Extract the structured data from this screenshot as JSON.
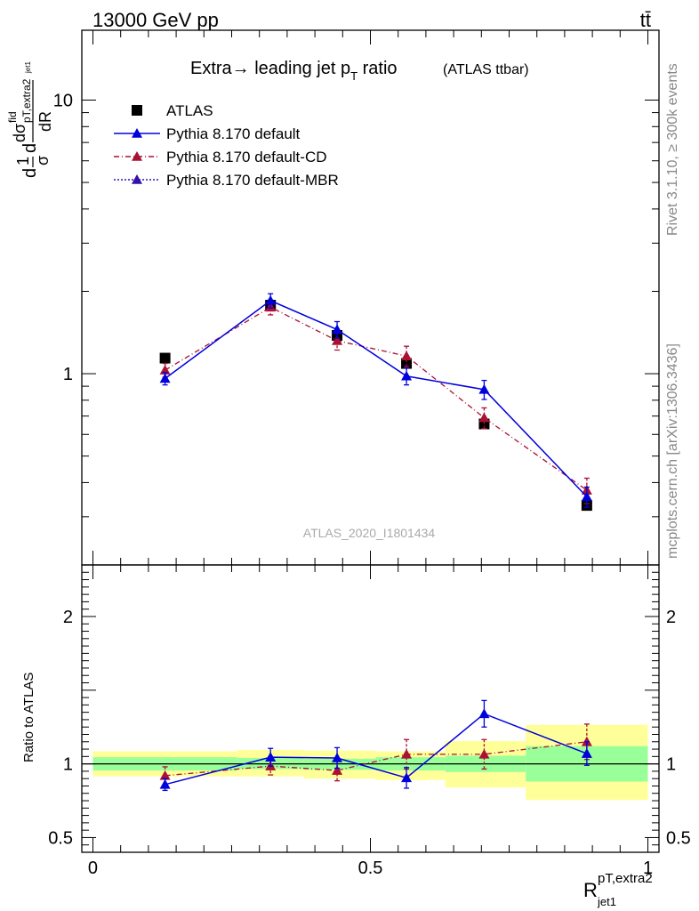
{
  "header": {
    "left": "13000 GeV pp",
    "right": "tt̄"
  },
  "title": {
    "main": "Extra→ leading jet p",
    "main_sub": "T",
    "main_tail": " ratio",
    "small": "(ATLAS ttbar)"
  },
  "watermark": "ATLAS_2020_I1801434",
  "side_text": {
    "rivet": "Rivet 3.1.10, ≥ 300k events",
    "mcplots": "mcplots.cern.ch [arXiv:1306.3436]"
  },
  "ylabel_top": "dσ/σ dσ fid / dR",
  "ylabel_bottom": "Ratio to ATLAS",
  "xlabel": {
    "base": "R",
    "sup": "pT,extra2",
    "sub": "jet1"
  },
  "colors": {
    "data": "#000000",
    "default": "#0000dd",
    "cd": "#aa1133",
    "mbr": "#3311aa",
    "band_inner": "#99ff99",
    "band_outer": "#ffff99"
  },
  "chart_data": [
    {
      "type": "line",
      "panel": "main",
      "yscale": "log",
      "ylim": [
        0.2,
        18
      ],
      "xlim": [
        -0.02,
        1.02
      ],
      "yticks": [
        1,
        10
      ],
      "ytick_labels": [
        "1",
        "10"
      ],
      "legend_placement": "top-left",
      "series": [
        {
          "name": "ATLAS",
          "style": "square-marker",
          "x": [
            0.13,
            0.32,
            0.44,
            0.565,
            0.705,
            0.89
          ],
          "y": [
            1.14,
            1.78,
            1.38,
            1.09,
            0.655,
            0.33
          ],
          "yerr": [
            0.02,
            0.03,
            0.03,
            0.02,
            0.02,
            0.01
          ]
        },
        {
          "name": "Pythia 8.170 default",
          "style": "solid",
          "x": [
            0.13,
            0.32,
            0.44,
            0.565,
            0.705,
            0.89
          ],
          "y": [
            0.96,
            1.85,
            1.45,
            0.98,
            0.875,
            0.355
          ],
          "yerr": [
            0.05,
            0.11,
            0.1,
            0.07,
            0.07,
            0.03
          ]
        },
        {
          "name": "Pythia 8.170 default-CD",
          "style": "dash-dot",
          "x": [
            0.13,
            0.32,
            0.44,
            0.565,
            0.705,
            0.89
          ],
          "y": [
            1.03,
            1.75,
            1.32,
            1.16,
            0.69,
            0.375
          ],
          "yerr": [
            0.06,
            0.11,
            0.1,
            0.1,
            0.06,
            0.04
          ]
        },
        {
          "name": "Pythia 8.170 default-MBR",
          "style": "dotted",
          "x": [],
          "y": [],
          "yerr": []
        }
      ]
    },
    {
      "type": "line",
      "panel": "ratio",
      "ylim": [
        0.4,
        2.35
      ],
      "xlim": [
        -0.02,
        1.02
      ],
      "yticks": [
        0.5,
        1,
        2
      ],
      "ytick_labels": [
        "0.5",
        "1",
        "2"
      ],
      "xticks": [
        0,
        0.5,
        1
      ],
      "xtick_labels": [
        "0",
        "0.5",
        "1"
      ],
      "bands": {
        "edges": [
          0,
          0.26,
          0.38,
          0.51,
          0.635,
          0.78,
          1.0
        ],
        "inner_low": [
          0.955,
          0.965,
          0.96,
          0.955,
          0.945,
          0.88
        ],
        "inner_high": [
          1.045,
          1.04,
          1.035,
          1.045,
          1.055,
          1.12
        ],
        "outer_low": [
          0.915,
          0.915,
          0.9,
          0.89,
          0.84,
          0.755
        ],
        "outer_high": [
          1.085,
          1.095,
          1.09,
          1.085,
          1.155,
          1.265
        ]
      },
      "series": [
        {
          "name": "Pythia 8.170 default",
          "x": [
            0.13,
            0.32,
            0.44,
            0.565,
            0.705,
            0.89
          ],
          "y": [
            0.86,
            1.045,
            1.04,
            0.905,
            1.34,
            1.07
          ],
          "yerr": [
            0.04,
            0.06,
            0.07,
            0.07,
            0.09,
            0.08
          ]
        },
        {
          "name": "Pythia 8.170 default-CD",
          "x": [
            0.13,
            0.32,
            0.44,
            0.565,
            0.705,
            0.89
          ],
          "y": [
            0.92,
            0.985,
            0.955,
            1.065,
            1.065,
            1.15
          ],
          "yerr": [
            0.06,
            0.06,
            0.07,
            0.1,
            0.1,
            0.12
          ]
        }
      ]
    }
  ]
}
